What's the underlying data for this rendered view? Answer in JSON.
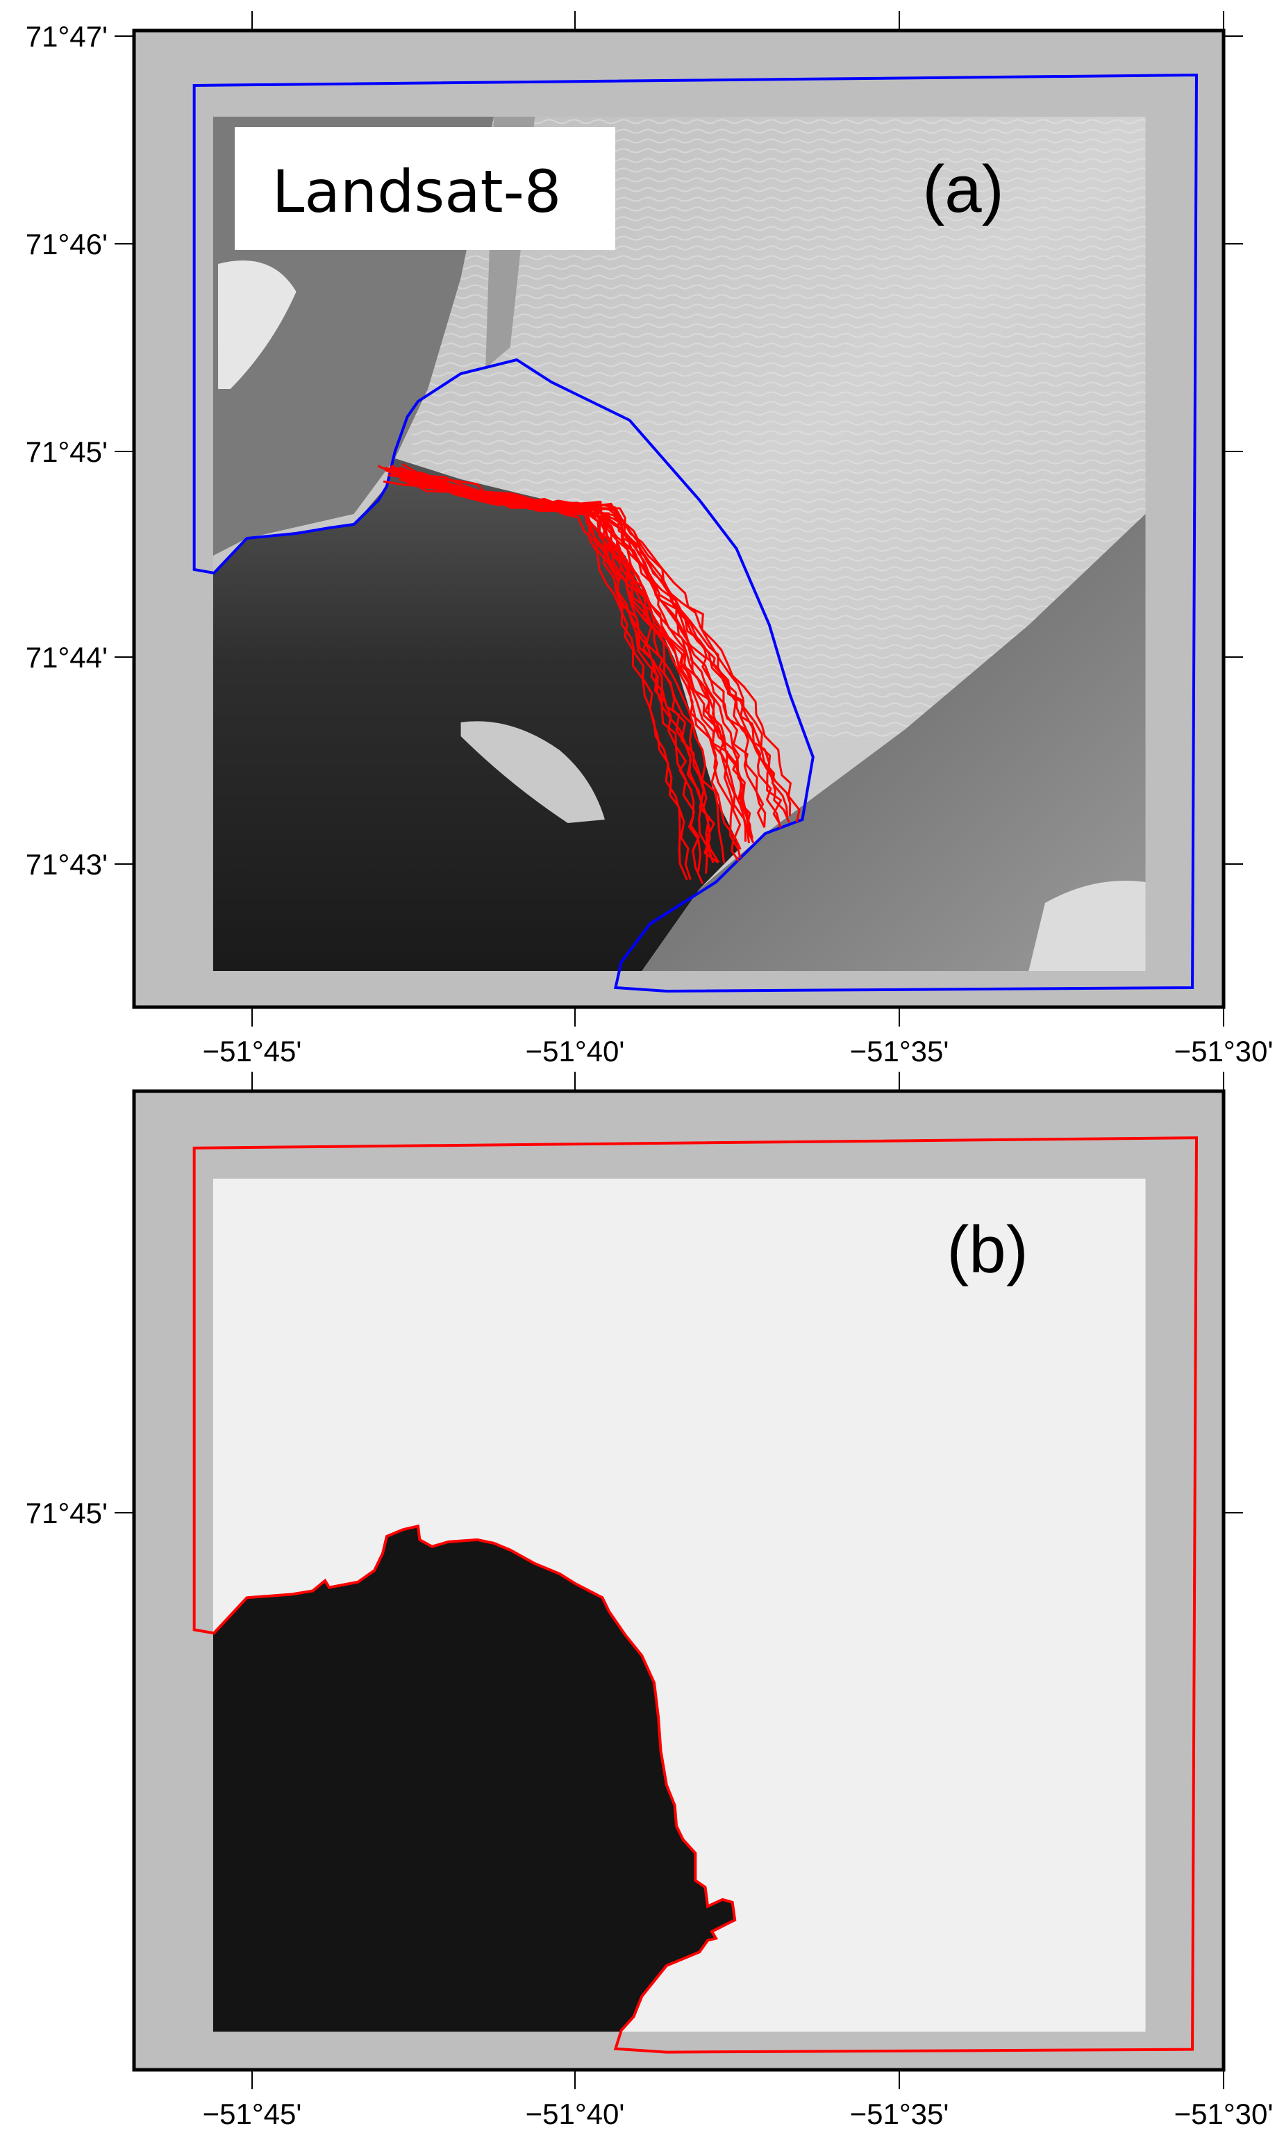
{
  "figure": {
    "panel_a": {
      "label": "(a)",
      "sensor_label": "Landsat-8",
      "outline_color": "#0000ff",
      "front_color": "#ff0000",
      "y_ticks": [
        "71°47'",
        "71°46'",
        "71°45'",
        "71°44'",
        "71°43'"
      ],
      "x_ticks": [
        "−51°45'",
        "−51°40'",
        "−51°35'",
        "−51°30'"
      ]
    },
    "panel_b": {
      "label": "(b)",
      "outline_color": "#ff0000",
      "land_mask_color": "#141414",
      "background_color": "#f0f0f0",
      "y_ticks": [
        "71°45'"
      ],
      "x_ticks": [
        "−51°45'",
        "−51°40'",
        "−51°35'",
        "−51°30'"
      ]
    },
    "frame_fill": "#bebebe"
  },
  "chart_data": {
    "type": "map",
    "x_axis": {
      "ticks": [
        "−51°45'",
        "−51°40'",
        "−51°35'",
        "−51°30'"
      ]
    },
    "panels": [
      {
        "label": "(a)",
        "layers": [
          "Landsat-8 image",
          "blue outline",
          "red calving front lines"
        ]
      },
      {
        "label": "(b)",
        "layers": [
          "binary mask",
          "red outline"
        ]
      }
    ]
  }
}
